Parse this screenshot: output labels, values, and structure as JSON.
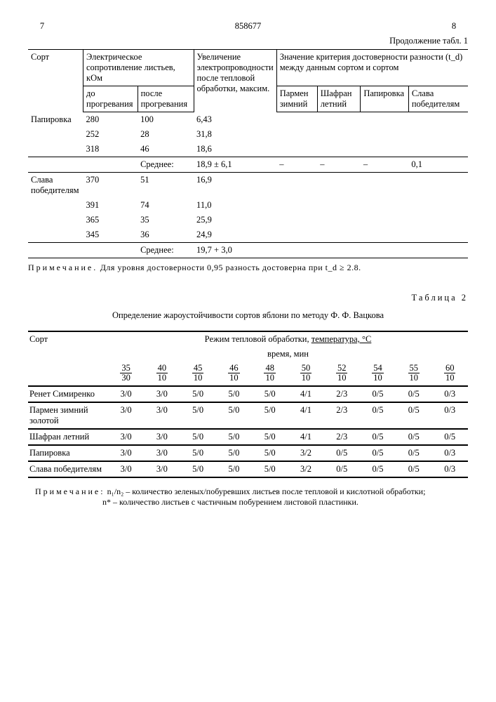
{
  "page_left": "7",
  "doc_number": "858677",
  "page_right": "8",
  "continuation": "Продолжение табл. 1",
  "table1": {
    "header": {
      "sort": "Сорт",
      "resist": "Электрическое сопротивление листьев, кОм",
      "resist_sub1": "до прогревания",
      "resist_sub2": "после прогревания",
      "increase": "Увеличение электропроводности после тепловой обработки, максим.",
      "criterion": "Значение критерия достоверности разности (t_d) между данным сортом и сортом",
      "c1": "Пармен зимний",
      "c2": "Шафран летний",
      "c3": "Папировка",
      "c4": "Слава победителям"
    },
    "groups": [
      {
        "name": "Папировка",
        "rows": [
          {
            "r1": "280",
            "r2": "100",
            "inc": "6,43"
          },
          {
            "r1": "252",
            "r2": "28",
            "inc": "31,8"
          },
          {
            "r1": "318",
            "r2": "46",
            "inc": "18,6"
          }
        ],
        "avg_label": "Среднее:",
        "avg": "18,9 ± 6,1",
        "crit": {
          "c1": "–",
          "c2": "–",
          "c3": "–",
          "c4": "0,1"
        }
      },
      {
        "name": "Слава победителям",
        "rows": [
          {
            "r1": "370",
            "r2": "51",
            "inc": "16,9"
          },
          {
            "r1": "391",
            "r2": "74",
            "inc": "11,0"
          },
          {
            "r1": "365",
            "r2": "35",
            "inc": "25,9"
          },
          {
            "r1": "345",
            "r2": "36",
            "inc": "24,9"
          }
        ],
        "avg_label": "Среднее:",
        "avg": "19,7 + 3,0",
        "crit": {
          "c1": "",
          "c2": "",
          "c3": "",
          "c4": ""
        }
      }
    ],
    "note_label": "Примечание.",
    "note": "Для уровня достоверности 0,95 разность достоверна при t_d ≥ 2.8."
  },
  "table2": {
    "label": "Таблица 2",
    "caption": "Определение жароустойчивости сортов яблони по методу Ф. Ф. Вацкова",
    "sort": "Сорт",
    "regime_hdr": "Режим тепловой обработки, ",
    "regime_hdr2": "температура, °C",
    "regime_sub": "время, мин",
    "fracs": [
      {
        "n": "35",
        "d": "30"
      },
      {
        "n": "40",
        "d": "10"
      },
      {
        "n": "45",
        "d": "10"
      },
      {
        "n": "46",
        "d": "10"
      },
      {
        "n": "48",
        "d": "10"
      },
      {
        "n": "50",
        "d": "10"
      },
      {
        "n": "52",
        "d": "10"
      },
      {
        "n": "54",
        "d": "10"
      },
      {
        "n": "55",
        "d": "10"
      },
      {
        "n": "60",
        "d": "10"
      }
    ],
    "rows": [
      {
        "name": "Ренет Симиренко",
        "v": [
          "3/0",
          "3/0",
          "5/0",
          "5/0",
          "5/0",
          "4/1",
          "2/3",
          "0/5",
          "0/5",
          "0/3"
        ]
      },
      {
        "name": "Пармен зимний золотой",
        "v": [
          "3/0",
          "3/0",
          "5/0",
          "5/0",
          "5/0",
          "4/1",
          "2/3",
          "0/5",
          "0/5",
          "0/3"
        ]
      },
      {
        "name": "Шафран летний",
        "v": [
          "3/0",
          "3/0",
          "5/0",
          "5/0",
          "5/0",
          "4/1",
          "2/3",
          "0/5",
          "0/5",
          "0/5"
        ]
      },
      {
        "name": "Папировка",
        "v": [
          "3/0",
          "3/0",
          "5/0",
          "5/0",
          "5/0",
          "3/2",
          "0/5",
          "0/5",
          "0/5",
          "0/3"
        ]
      },
      {
        "name": "Слава победителям",
        "v": [
          "3/0",
          "3/0",
          "5/0",
          "5/0",
          "5/0",
          "3/2",
          "0/5",
          "0/5",
          "0/5",
          "0/3"
        ]
      }
    ],
    "note_label": "Примечание:",
    "note1": "n₁/n₂ – количество зеленых/побуревших листьев после тепловой и кислотной обработки;",
    "note2": "n* – количество листьев с частичным побурением листовой пластинки."
  }
}
